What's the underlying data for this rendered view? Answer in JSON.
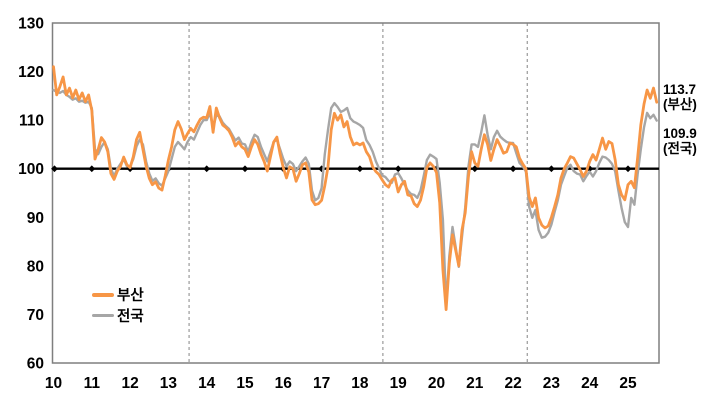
{
  "chart_data": {
    "type": "line",
    "title": "",
    "xlabel": "",
    "ylabel": "",
    "ylim": [
      60,
      130
    ],
    "yticks": [
      "130",
      "120",
      "110",
      "100",
      "90",
      "80",
      "70",
      "60"
    ],
    "ytick_values": [
      130,
      120,
      110,
      100,
      90,
      80,
      70,
      60
    ],
    "xticks": [
      "10",
      "11",
      "12",
      "13",
      "14",
      "15",
      "16",
      "17",
      "18",
      "19",
      "20",
      "21",
      "22",
      "23",
      "24",
      "25"
    ],
    "xtick_years": [
      2010,
      2011,
      2012,
      2013,
      2014,
      2015,
      2016,
      2017,
      2018,
      2019,
      2020,
      2021,
      2022,
      2023,
      2024,
      2025
    ],
    "grid": false,
    "legend_position": "lower-left",
    "baseline": 100,
    "baseline_marker_years": [
      2010,
      2011,
      2012,
      2013,
      2014,
      2015,
      2016,
      2017,
      2018,
      2019,
      2020,
      2021,
      2022,
      2023,
      2024,
      2025
    ],
    "dashed_lines_x": [
      2013.54,
      2018.6,
      2022.37
    ],
    "x_start_year": 2010,
    "x_step": "monthly",
    "colors": {
      "busan": "#F79646",
      "nationwide": "#A6A6A6",
      "baseline": "#000000",
      "border": "#7F7F7F",
      "dashed": "#999999"
    },
    "legend": [
      {
        "label": "부산",
        "color": "#F79646"
      },
      {
        "label": "전국",
        "color": "#A6A6A6"
      }
    ],
    "annotations": [
      {
        "value": "113.7",
        "series": "(부산)"
      },
      {
        "value": "109.9",
        "series": "(전국)"
      }
    ],
    "series": [
      {
        "name": "부산",
        "color": "#F79646",
        "width": 2.8,
        "values": [
          121,
          115.2,
          116.9,
          118.9,
          115.2,
          116.6,
          114.6,
          116.2,
          114.2,
          115.6,
          113.8,
          115.2,
          112,
          102,
          104,
          106.4,
          105.5,
          103.5,
          99,
          97.8,
          99.5,
          100.5,
          102.4,
          100.8,
          100.2,
          102.5,
          106,
          107.5,
          104,
          100.5,
          98,
          96.7,
          97.3,
          96,
          95.6,
          98.5,
          101.8,
          104.5,
          108,
          109.7,
          108.2,
          106,
          107.2,
          108.3,
          107.6,
          109,
          110.2,
          110.6,
          110.5,
          112.8,
          107.5,
          112.5,
          110.5,
          109,
          108.5,
          107.8,
          106.5,
          104.7,
          105.5,
          104.5,
          104,
          102.5,
          104.5,
          106,
          105,
          103,
          101.5,
          99.5,
          102.5,
          105.5,
          106.5,
          103,
          100.2,
          98.1,
          100.4,
          100,
          97.4,
          99,
          100.8,
          101.2,
          99.3,
          93.6,
          92.6,
          92.8,
          93.5,
          96.5,
          100.4,
          108,
          111.4,
          110,
          111.1,
          108.6,
          109.7,
          106.6,
          104.9,
          105.3,
          104.9,
          105.3,
          103.5,
          102.5,
          100.4,
          99.4,
          98.8,
          97.7,
          96.7,
          96.2,
          97.7,
          98.1,
          95.2,
          96.7,
          97.4,
          94.6,
          94.4,
          92.8,
          92.2,
          93.5,
          96.3,
          100.2,
          101.2,
          100.5,
          99.2,
          93,
          79.2,
          71,
          80.5,
          86.4,
          83.3,
          80,
          87.4,
          90.9,
          98.3,
          103.5,
          101.2,
          100.5,
          104,
          107,
          105,
          101.7,
          104,
          106,
          104.7,
          103.2,
          103.5,
          105.3,
          105,
          104.5,
          102.2,
          101,
          100,
          94.2,
          92.2,
          94,
          89.9,
          88.4,
          87.8,
          88.2,
          90,
          92.2,
          94.6,
          98.1,
          100,
          101.2,
          102.5,
          102.2,
          101,
          99.8,
          98.4,
          99.5,
          101.5,
          102.9,
          101.8,
          104,
          106.3,
          104,
          105.6,
          105.2,
          101.8,
          96.7,
          94.6,
          93.6,
          96.7,
          97.4,
          96.1,
          102.2,
          109,
          113.3,
          116.2,
          114.5,
          116.6,
          113.7
        ]
      },
      {
        "name": "전국",
        "color": "#A6A6A6",
        "width": 2.4,
        "values": [
          116.2,
          115.8,
          115.6,
          116,
          115.2,
          114.8,
          114.2,
          114.5,
          113.8,
          114,
          113.6,
          113.8,
          112.5,
          104,
          103,
          104.5,
          105.5,
          104,
          100,
          98.5,
          100,
          101,
          102,
          100.5,
          100.5,
          102,
          104.6,
          106,
          105,
          101.5,
          99,
          97.5,
          98,
          97,
          96.5,
          98,
          99.5,
          102,
          104.5,
          105.5,
          104.8,
          104,
          105.5,
          106.5,
          106,
          107.5,
          109,
          110,
          110,
          111.5,
          108.5,
          111,
          110.8,
          109.5,
          108.8,
          108.2,
          107,
          105.8,
          106.4,
          105.2,
          105,
          103.5,
          105.5,
          107,
          106.5,
          104.5,
          103,
          101.5,
          103.5,
          105.5,
          106,
          104,
          102,
          100.5,
          101.5,
          101,
          99.5,
          100.5,
          101.5,
          102.3,
          101,
          95.5,
          93.5,
          94,
          96,
          103,
          108,
          112.5,
          113.5,
          112.7,
          111.7,
          112,
          112.5,
          110.4,
          109.7,
          109.4,
          109,
          108.4,
          105.9,
          104.9,
          103.5,
          101.5,
          100.1,
          98.6,
          98.3,
          97.5,
          97.1,
          98.8,
          99.1,
          98,
          96.7,
          95.5,
          94.8,
          94.6,
          94,
          95.5,
          98.5,
          101.8,
          102.9,
          102.5,
          102,
          97.1,
          89.5,
          72,
          82,
          88,
          84,
          79.8,
          86,
          92,
          100.4,
          105,
          105,
          104.5,
          107.5,
          111,
          107,
          104,
          106.5,
          107.8,
          106.6,
          106,
          105.5,
          105.3,
          105.3,
          103.2,
          101.2,
          100.5,
          99.4,
          92.2,
          89.9,
          91.5,
          87.4,
          85.8,
          86,
          86.8,
          88.5,
          91.1,
          93.5,
          96.7,
          98.5,
          100.2,
          100.8,
          99.5,
          99,
          98.8,
          97.4,
          98.5,
          99.4,
          98.4,
          99.5,
          101.2,
          102.5,
          102.3,
          101.8,
          101,
          99.4,
          95.5,
          91.9,
          89,
          88,
          94,
          92.6,
          98.8,
          104,
          108.5,
          111.5,
          110.4,
          111.1,
          109.9
        ]
      }
    ]
  }
}
